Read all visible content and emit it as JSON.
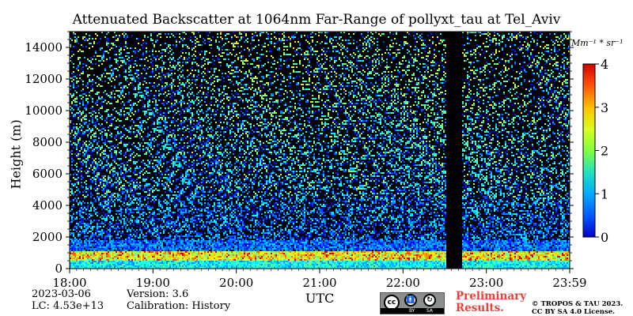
{
  "chart_data": {
    "type": "heatmap",
    "title": "Attenuated Backscatter at 1064nm Far-Range of pollyxt_tau at Tel_Aviv",
    "xlabel": "UTC",
    "ylabel": "Height (m)",
    "x_ticks": [
      "18:00",
      "19:00",
      "20:00",
      "21:00",
      "22:00",
      "23:00",
      "23:59"
    ],
    "y_ticks": [
      0,
      2000,
      4000,
      6000,
      8000,
      10000,
      12000,
      14000
    ],
    "ylim": [
      0,
      15000
    ],
    "xlim_hours": [
      18.0,
      24.0
    ],
    "colorbar": {
      "label": "Mm^-1 * sr^-1",
      "ticks": [
        0,
        1,
        2,
        3,
        4
      ],
      "range": [
        0,
        4
      ],
      "colormap": "jet"
    },
    "data_gap_utc": [
      "22:32",
      "22:42"
    ],
    "boundary_layer_top_m": 1800,
    "aerosol_layer_height_m": 800
  },
  "footer": {
    "date": "2023-03-06",
    "lc": "LC: 4.53e+13",
    "version": "Version: 3.6",
    "calibration": "Calibration: History",
    "preliminary_line1": "Preliminary",
    "preliminary_line2": "Results.",
    "copyright_line1": "© TROPOS & TAU 2023.",
    "copyright_line2": "CC BY SA 4.0 License.",
    "cc_logo_cc": "cc",
    "cc_logo_by": "BY",
    "cc_logo_sa": "SA"
  },
  "unit_label": "Mm⁻¹ * sr⁻¹"
}
